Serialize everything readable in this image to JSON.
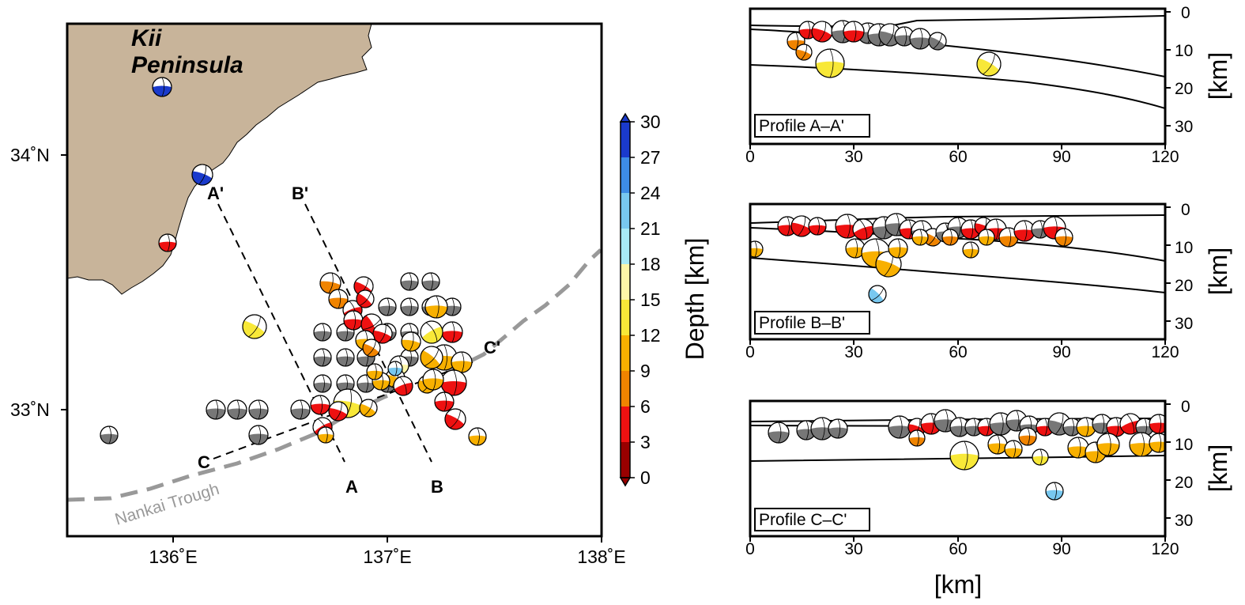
{
  "map": {
    "region_label_line1": "Kii",
    "region_label_line2": "Peninsula",
    "trough_label": "Nankai Trough",
    "lat_labels": [
      "34˚N",
      "33˚N"
    ],
    "lon_labels": [
      "136˚E",
      "137˚E",
      "138˚E"
    ],
    "profile_endpoints": [
      "A'",
      "A",
      "B'",
      "B",
      "C",
      "C'"
    ],
    "colors": {
      "land": "#c8b49a",
      "sea": "#ffffff",
      "trough": "#999999",
      "reference_events": "#777777"
    }
  },
  "colorbar": {
    "title": "Depth [km]",
    "ticks": [
      "30",
      "27",
      "24",
      "21",
      "18",
      "15",
      "12",
      "9",
      "6",
      "3",
      "0"
    ],
    "bins": [
      {
        "range": "0-3",
        "color": "#990000"
      },
      {
        "range": "3-6",
        "color": "#ee1111"
      },
      {
        "range": "6-9",
        "color": "#f08400"
      },
      {
        "range": "9-12",
        "color": "#f8b000"
      },
      {
        "range": "12-15",
        "color": "#f8e838"
      },
      {
        "range": "15-18",
        "color": "#fdf6a8"
      },
      {
        "range": "18-21",
        "color": "#a8eaf6"
      },
      {
        "range": "21-24",
        "color": "#78c8f0"
      },
      {
        "range": "24-27",
        "color": "#3d8ce6"
      },
      {
        "range": "27-30",
        "color": "#1a3acc"
      }
    ]
  },
  "profiles": [
    {
      "title": "Profile A–A'",
      "x_ticks": [
        "0",
        "30",
        "60",
        "90",
        "120"
      ],
      "depth_ticks": [
        "0",
        "10",
        "20",
        "30"
      ],
      "y_unit": "[km]"
    },
    {
      "title": "Profile B–B'",
      "x_ticks": [
        "0",
        "30",
        "60",
        "90",
        "120"
      ],
      "depth_ticks": [
        "0",
        "10",
        "20",
        "30"
      ],
      "y_unit": "[km]"
    },
    {
      "title": "Profile C–C'",
      "x_ticks": [
        "0",
        "30",
        "60",
        "90",
        "120"
      ],
      "depth_ticks": [
        "0",
        "10",
        "20",
        "30"
      ],
      "y_unit": "[km]"
    }
  ],
  "profile_x_label": "[km]"
}
